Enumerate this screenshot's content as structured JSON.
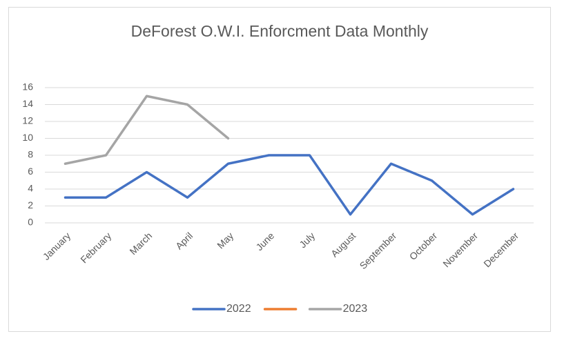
{
  "chart_data": {
    "type": "line",
    "title": "DeForest O.W.I. Enforcment Data Monthly",
    "categories": [
      "January",
      "February",
      "March",
      "April",
      "May",
      "June",
      "July",
      "August",
      "September",
      "October",
      "November",
      "December"
    ],
    "series": [
      {
        "name": "2022",
        "color": "#4472c4",
        "values": [
          3,
          3,
          6,
          3,
          7,
          8,
          8,
          1,
          7,
          5,
          1,
          4
        ]
      },
      {
        "color": "#ed7d31",
        "values": [
          null,
          null,
          null,
          null,
          null,
          null,
          null,
          null,
          null,
          null,
          null,
          null
        ]
      },
      {
        "name": "2023",
        "color": "#a5a5a5",
        "values": [
          7,
          8,
          15,
          14,
          10,
          null,
          null,
          null,
          null,
          null,
          null,
          null
        ]
      }
    ],
    "ylim": [
      0,
      16
    ],
    "yticks": [
      0,
      2,
      4,
      6,
      8,
      10,
      12,
      14,
      16
    ],
    "grid": true,
    "legend": "bottom"
  }
}
